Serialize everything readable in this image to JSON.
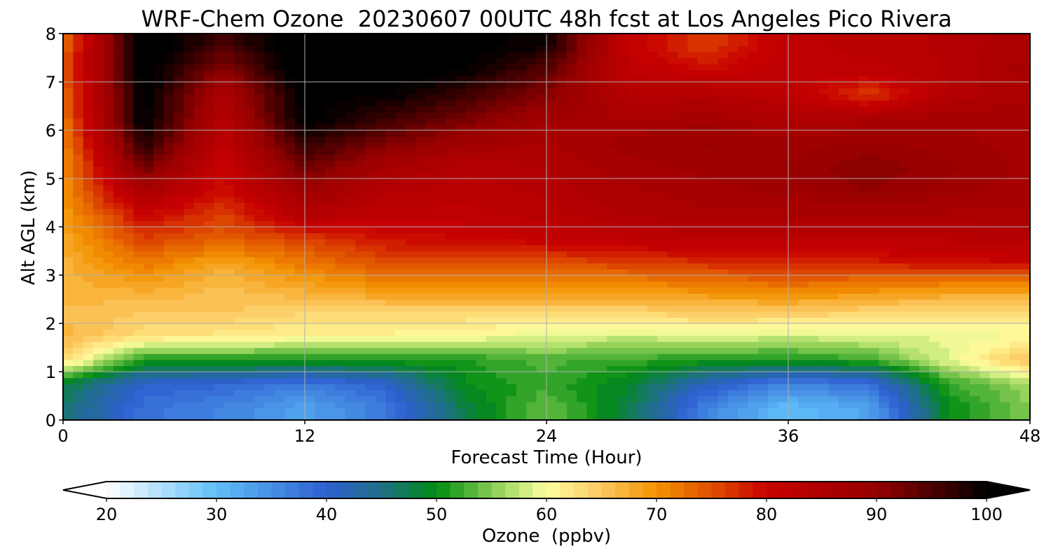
{
  "chart_data": {
    "type": "heatmap",
    "title": "WRF-Chem Ozone  20230607 00UTC 48h fcst at Los Angeles Pico Rivera",
    "xlabel": "Forecast Time (Hour)",
    "ylabel": "Alt AGL (km)",
    "xlim": [
      0,
      48
    ],
    "ylim": [
      0,
      8
    ],
    "x_ticks": [
      0,
      12,
      24,
      36,
      48
    ],
    "y_ticks": [
      0,
      1,
      2,
      3,
      4,
      5,
      6,
      7,
      8
    ],
    "grid": true,
    "x": [
      0,
      4,
      8,
      12,
      16,
      20,
      24,
      28,
      32,
      36,
      40,
      44,
      48
    ],
    "y": [
      0.25,
      0.75,
      1.25,
      1.75,
      2.25,
      2.75,
      3.25,
      3.75,
      4.25,
      4.75,
      5.25,
      5.75,
      6.25,
      6.75,
      7.25,
      7.75
    ],
    "z": [
      [
        46,
        38,
        36,
        33,
        37,
        48,
        54,
        48,
        36,
        30,
        33,
        50,
        55
      ],
      [
        48,
        40,
        39,
        37,
        40,
        50,
        52,
        49,
        41,
        36,
        38,
        52,
        56
      ],
      [
        63,
        51,
        51,
        51,
        51,
        51,
        53,
        52,
        51,
        51,
        52,
        59,
        66
      ],
      [
        67,
        63,
        62,
        61,
        61,
        60,
        59,
        58,
        59,
        58,
        59,
        59,
        60
      ],
      [
        66,
        65,
        65,
        64,
        64,
        64,
        64,
        64,
        65,
        65,
        64,
        63,
        63
      ],
      [
        67,
        68,
        66,
        68,
        70,
        70,
        70,
        70,
        71,
        72,
        71,
        70,
        70
      ],
      [
        67,
        72,
        68,
        72,
        75,
        75,
        75,
        76,
        77,
        78,
        78,
        79,
        80
      ],
      [
        68,
        76,
        74,
        76,
        79,
        80,
        81,
        82,
        83,
        83,
        83,
        83,
        84
      ],
      [
        69,
        80,
        76,
        84,
        82,
        82,
        83,
        85,
        86,
        86,
        86,
        86,
        86
      ],
      [
        70,
        86,
        79,
        88,
        84,
        83,
        84,
        86,
        87,
        88,
        90,
        88,
        87
      ],
      [
        70,
        93,
        80,
        93,
        87,
        84,
        85,
        87,
        88,
        89,
        91,
        89,
        87
      ],
      [
        71,
        98,
        82,
        97,
        92,
        88,
        86,
        88,
        89,
        88,
        89,
        88,
        87
      ],
      [
        72,
        101,
        84,
        101,
        96,
        92,
        88,
        86,
        87,
        85,
        86,
        87,
        87
      ],
      [
        73,
        101,
        86,
        101,
        100,
        96,
        91,
        84,
        84,
        82,
        76,
        84,
        86
      ],
      [
        74,
        102,
        90,
        103,
        102,
        100,
        94,
        82,
        80,
        82,
        82,
        84,
        87
      ],
      [
        73,
        103,
        95,
        103,
        103,
        101,
        99,
        81,
        76,
        82,
        83,
        84,
        86
      ]
    ],
    "colorbar": {
      "label": "Ozone  (ppbv)",
      "min": 20,
      "max": 100,
      "ticks": [
        20,
        30,
        40,
        50,
        60,
        70,
        80,
        90,
        100
      ],
      "extend": "both",
      "levels": 64,
      "stops": [
        {
          "v": 20,
          "color": "#ffffff"
        },
        {
          "v": 30,
          "color": "#5fbff8"
        },
        {
          "v": 40,
          "color": "#2e5fd0"
        },
        {
          "v": 45,
          "color": "#1f6f88"
        },
        {
          "v": 50,
          "color": "#008c10"
        },
        {
          "v": 56,
          "color": "#a0d860"
        },
        {
          "v": 60,
          "color": "#ffffa0"
        },
        {
          "v": 65,
          "color": "#fcc860"
        },
        {
          "v": 70,
          "color": "#f39200"
        },
        {
          "v": 75,
          "color": "#e05000"
        },
        {
          "v": 80,
          "color": "#c80000"
        },
        {
          "v": 90,
          "color": "#960000"
        },
        {
          "v": 100,
          "color": "#000000"
        }
      ]
    }
  }
}
